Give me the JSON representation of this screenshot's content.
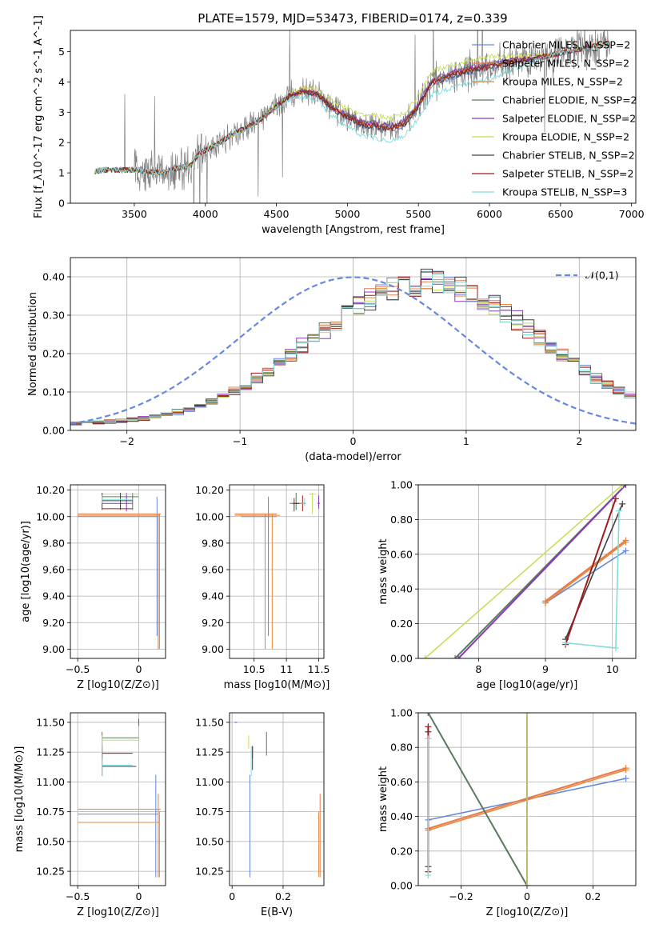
{
  "title": "PLATE=1579, MJD=53473, FIBERID=0174, z=0.339",
  "colors": {
    "Chabrier MILES": "#6688dd",
    "Salpeter MILES": "#e8794a",
    "Kroupa MILES": "#e88838",
    "Chabrier ELODIE": "#587a5e",
    "Salpeter ELODIE": "#8a3ab8",
    "Kroupa ELODIE": "#c8de58",
    "Chabrier STELIB": "#404040",
    "Salpeter STELIB": "#a01a1a",
    "Kroupa STELIB": "#80dcdc",
    "data": "#808080",
    "normal": "#6688dd",
    "grid": "#b0b0b0"
  },
  "chart_data": [
    {
      "id": "spectrum",
      "type": "line",
      "xlabel": "wavelength [Angstrom, rest frame]",
      "ylabel": "Flux [f_λ10^-17 erg cm^-2 s^-1 A^-1]",
      "xlim": [
        3050,
        7030
      ],
      "ylim": [
        0,
        5.7
      ],
      "xticks": [
        3500,
        4000,
        4500,
        5000,
        5500,
        6000,
        6500,
        7000
      ],
      "yticks": [
        0,
        1,
        2,
        3,
        4,
        5
      ],
      "grid": false,
      "legend_position": "upper-right",
      "continuum": {
        "x": [
          3220,
          3300,
          3500,
          3700,
          3800,
          3900,
          3950,
          4000,
          4100,
          4200,
          4300,
          4400,
          4500,
          4600,
          4700,
          4800,
          4900,
          5000,
          5100,
          5200,
          5300,
          5400,
          5500,
          5600,
          5800,
          6000,
          6200,
          6400,
          6600,
          6850
        ],
        "y": [
          1.05,
          1.1,
          1.1,
          1.0,
          1.15,
          1.25,
          1.6,
          1.75,
          2.0,
          2.3,
          2.5,
          2.8,
          3.2,
          3.55,
          3.7,
          3.55,
          3.1,
          2.85,
          2.6,
          2.55,
          2.45,
          2.6,
          3.2,
          4.0,
          4.3,
          4.5,
          4.7,
          4.85,
          5.05,
          5.3
        ]
      },
      "series": [
        {
          "name": "Chabrier MILES, N_SSP=2",
          "style": "thin",
          "offset": -0.05
        },
        {
          "name": "Salpeter MILES, N_SSP=2",
          "style": "thin",
          "offset": 0.0
        },
        {
          "name": "Kroupa MILES, N_SSP=2",
          "style": "thin",
          "offset": 0.05
        },
        {
          "name": "Chabrier ELODIE, N_SSP=2",
          "style": "thin",
          "offset": 0.08
        },
        {
          "name": "Salpeter ELODIE, N_SSP=2",
          "style": "thin",
          "offset": 0.1
        },
        {
          "name": "Kroupa ELODIE, N_SSP=2",
          "style": "thin",
          "offset": 0.35
        },
        {
          "name": "Chabrier STELIB, N_SSP=2",
          "style": "thin",
          "offset": -0.02
        },
        {
          "name": "Salpeter STELIB, N_SSP=2",
          "style": "thin",
          "offset": 0.02
        },
        {
          "name": "Kroupa STELIB, N_SSP=3",
          "style": "thin",
          "offset": -0.4
        }
      ]
    },
    {
      "id": "residuals",
      "type": "line",
      "xlabel": "(data-model)/error",
      "ylabel": "Normed distribution",
      "xlim": [
        -2.5,
        2.5
      ],
      "ylim": [
        0,
        0.45
      ],
      "xticks": [
        -2,
        -1,
        0,
        1,
        2
      ],
      "yticks": [
        0.0,
        0.1,
        0.2,
        0.3,
        0.4
      ],
      "grid": true,
      "legend_position": "upper-right",
      "normal_label": "𝒩(0,1)",
      "bin_edges_start": -2.5,
      "bin_width": 0.1,
      "bins": 50
    },
    {
      "id": "age-vs-Z",
      "type": "scatter",
      "xlabel": "Z [log10(Z/Z⊙)]",
      "ylabel": "age  [log10(age/yr)]",
      "xlim": [
        -0.56,
        0.22
      ],
      "ylim": [
        8.93,
        10.24
      ],
      "xticks": [
        -0.5,
        0.0
      ],
      "yticks": [
        9.0,
        9.2,
        9.4,
        9.6,
        9.8,
        10.0,
        10.2
      ],
      "grid": true
    },
    {
      "id": "age-vs-mass",
      "type": "scatter",
      "xlabel": "mass [log10(M/M⊙)]",
      "ylabel": "",
      "xlim": [
        10.12,
        11.58
      ],
      "ylim": [
        8.93,
        10.24
      ],
      "xticks": [
        10.5,
        11.0,
        11.5
      ],
      "yticks": [
        9.0,
        9.2,
        9.4,
        9.6,
        9.8,
        10.0,
        10.2
      ],
      "grid": true
    },
    {
      "id": "weight-vs-age",
      "type": "line",
      "xlabel": "age  [log10(age/yr)]",
      "ylabel": "mass weight",
      "xlim": [
        7.1,
        10.35
      ],
      "ylim": [
        0,
        1.0
      ],
      "xticks": [
        8,
        9,
        10
      ],
      "yticks": [
        0.0,
        0.2,
        0.4,
        0.6,
        0.8,
        1.0
      ],
      "grid": true,
      "series": [
        {
          "name": "Chabrier MILES",
          "x": [
            9.0,
            10.2
          ],
          "y": [
            0.32,
            0.62
          ]
        },
        {
          "name": "Salpeter MILES",
          "x": [
            9.0,
            10.2
          ],
          "y": [
            0.33,
            0.68
          ]
        },
        {
          "name": "Kroupa MILES",
          "x": [
            9.0,
            10.2
          ],
          "y": [
            0.32,
            0.67
          ]
        },
        {
          "name": "Chabrier ELODIE",
          "x": [
            7.65,
            10.2
          ],
          "y": [
            0.0,
            1.0
          ]
        },
        {
          "name": "Salpeter ELODIE",
          "x": [
            7.7,
            10.2
          ],
          "y": [
            0.0,
            1.0
          ]
        },
        {
          "name": "Kroupa ELODIE",
          "x": [
            7.2,
            10.15
          ],
          "y": [
            0.0,
            1.0
          ]
        },
        {
          "name": "Chabrier STELIB",
          "x": [
            9.3,
            10.15
          ],
          "y": [
            0.11,
            0.89
          ]
        },
        {
          "name": "Salpeter STELIB",
          "x": [
            9.3,
            10.05
          ],
          "y": [
            0.08,
            0.92
          ]
        },
        {
          "name": "Kroupa STELIB",
          "x": [
            9.3,
            10.05,
            10.1
          ],
          "y": [
            0.09,
            0.06,
            0.85
          ]
        }
      ]
    },
    {
      "id": "mass-vs-Z",
      "type": "scatter",
      "xlabel": "Z [log10(Z/Z⊙)]",
      "ylabel": "mass [log10(M/M⊙)]",
      "xlim": [
        -0.56,
        0.22
      ],
      "ylim": [
        10.13,
        11.58
      ],
      "xticks": [
        -0.5,
        0.0
      ],
      "yticks": [
        10.25,
        10.5,
        10.75,
        11.0,
        11.25,
        11.5
      ],
      "grid": true
    },
    {
      "id": "mass-vs-ebv",
      "type": "scatter",
      "xlabel": "E(B-V)",
      "ylabel": "",
      "xlim": [
        -0.01,
        0.36
      ],
      "ylim": [
        10.13,
        11.58
      ],
      "xticks": [
        0.0,
        0.2
      ],
      "yticks": [
        10.25,
        10.5,
        10.75,
        11.0,
        11.25,
        11.5
      ],
      "grid": true
    },
    {
      "id": "weight-vs-Z",
      "type": "line",
      "xlabel": "Z [log10(Z/Z⊙)]",
      "ylabel": "mass weight",
      "xlim": [
        -0.33,
        0.33
      ],
      "ylim": [
        0,
        1.0
      ],
      "xticks": [
        -0.2,
        0.0,
        0.2
      ],
      "yticks": [
        0.0,
        0.2,
        0.4,
        0.6,
        0.8,
        1.0
      ],
      "grid": true,
      "series": [
        {
          "name": "Chabrier MILES",
          "x": [
            -0.3,
            0.3
          ],
          "y": [
            0.38,
            0.62
          ]
        },
        {
          "name": "Salpeter MILES",
          "x": [
            -0.3,
            0.3
          ],
          "y": [
            0.33,
            0.68
          ]
        },
        {
          "name": "Kroupa MILES",
          "x": [
            -0.3,
            0.3
          ],
          "y": [
            0.32,
            0.67
          ]
        },
        {
          "name": "Chabrier ELODIE",
          "x": [
            -0.3,
            0.0
          ],
          "y": [
            1.0,
            0.0
          ]
        },
        {
          "name": "Salpeter ELODIE",
          "x": [
            0.0,
            0.0
          ],
          "y": [
            0.0,
            1.0
          ]
        },
        {
          "name": "Kroupa ELODIE",
          "x": [
            0.0,
            0.0
          ],
          "y": [
            0.0,
            1.0
          ]
        },
        {
          "name": "Chabrier STELIB",
          "x": [
            -0.3,
            -0.3
          ],
          "y": [
            0.11,
            0.89
          ]
        },
        {
          "name": "Salpeter STELIB",
          "x": [
            -0.3,
            -0.3
          ],
          "y": [
            0.08,
            0.92
          ]
        },
        {
          "name": "Kroupa STELIB",
          "x": [
            -0.3,
            -0.3
          ],
          "y": [
            0.06,
            0.85
          ]
        }
      ]
    }
  ]
}
